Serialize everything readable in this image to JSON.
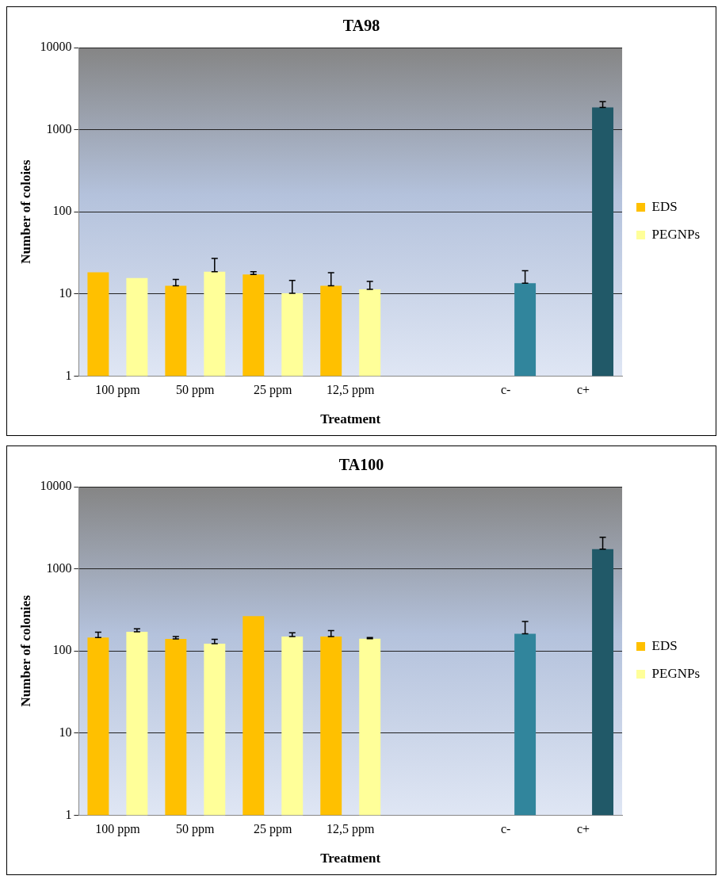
{
  "chart_data": [
    {
      "type": "bar",
      "title": "TA98",
      "xlabel": "Treatment",
      "ylabel": "Number of coloies",
      "categories": [
        "100 ppm",
        "50 ppm",
        "25 ppm",
        "12,5 ppm",
        null,
        "c-",
        "c+"
      ],
      "log": true,
      "ylim": [
        1,
        10000
      ],
      "yticks": [
        1,
        10,
        100,
        1000,
        10000
      ],
      "grid": "y",
      "legend": "right",
      "series": [
        {
          "name": "EDS",
          "color": "#ffc000",
          "values": [
            18.3,
            12.6,
            17.3,
            12.6,
            null,
            null,
            null
          ],
          "errors": [
            null,
            [
              12.6,
              15
            ],
            [
              17.3,
              18.7
            ],
            [
              12.6,
              18.1
            ],
            null,
            null,
            null
          ]
        },
        {
          "name": "PEGNPs",
          "color": "#ffff99",
          "colors": [
            "#ffff99",
            "#ffff99",
            "#ffff99",
            "#ffff99",
            "#ffff99",
            "#31859c",
            "#215968"
          ],
          "values": [
            15.6,
            18.7,
            10.2,
            11.4,
            null,
            13.5,
            1870
          ],
          "errors": [
            null,
            [
              18.7,
              27
            ],
            [
              10.2,
              14.6
            ],
            [
              11.4,
              14.2
            ],
            null,
            [
              13.5,
              19.2
            ],
            [
              1870,
              2190
            ]
          ]
        }
      ]
    },
    {
      "type": "bar",
      "title": "TA100",
      "xlabel": "Treatment",
      "ylabel": "Number of colonies",
      "categories": [
        "100 ppm",
        "50 ppm",
        "25 ppm",
        "12,5 ppm",
        null,
        "c-",
        "c+"
      ],
      "log": true,
      "ylim": [
        1,
        10000
      ],
      "yticks": [
        1,
        10,
        100,
        1000,
        10000
      ],
      "grid": "y",
      "legend": "right",
      "series": [
        {
          "name": "EDS",
          "color": "#ffc000",
          "values": [
            146,
            140,
            266,
            150,
            null,
            null,
            null
          ],
          "errors": [
            [
              146,
              169
            ],
            [
              140,
              150
            ],
            null,
            [
              150,
              177
            ],
            null,
            null,
            null
          ]
        },
        {
          "name": "PEGNPs",
          "color": "#ffff99",
          "colors": [
            "#ffff99",
            "#ffff99",
            "#ffff99",
            "#ffff99",
            "#ffff99",
            "#31859c",
            "#215968"
          ],
          "values": [
            171,
            123,
            150,
            141,
            null,
            162,
            1740
          ],
          "errors": [
            [
              171,
              186
            ],
            [
              123,
              139
            ],
            [
              150,
              167
            ],
            [
              141,
              146
            ],
            null,
            [
              162,
              229
            ],
            [
              1740,
              2430
            ]
          ]
        }
      ]
    }
  ]
}
